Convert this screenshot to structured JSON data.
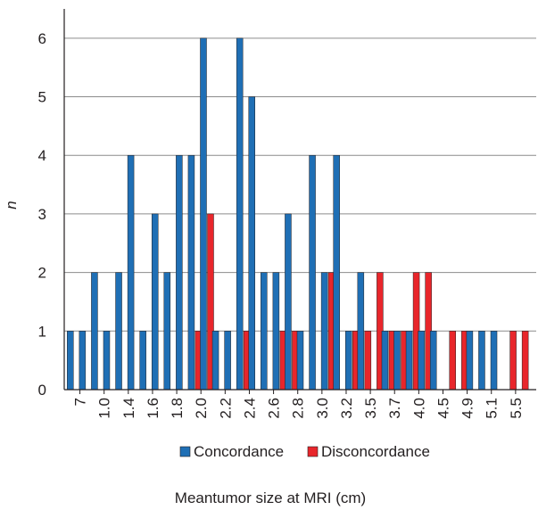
{
  "chart_data": {
    "type": "bar",
    "title": "",
    "ylabel": "n",
    "xlabel": "Meantumor size at MRI (cm)",
    "ylim": [
      0,
      6.5
    ],
    "yticks": [
      0,
      1,
      2,
      3,
      4,
      5,
      6
    ],
    "grid": "horizontal",
    "legend_position": "bottom",
    "x_tick_labels": [
      "7",
      "1.0",
      "1.4",
      "1.6",
      "1.8",
      "2.0",
      "2.2",
      "2.4",
      "2.6",
      "2.8",
      "3.0",
      "3.2",
      "3.5",
      "3.7",
      "4.0",
      "4.5",
      "4.9",
      "5.1",
      "5.5"
    ],
    "series": [
      {
        "name": "Concordance",
        "color": "#1f6fb5",
        "values": [
          1,
          1,
          2,
          1,
          2,
          4,
          1,
          3,
          2,
          4,
          4,
          6,
          1,
          1,
          6,
          5,
          2,
          2,
          3,
          1,
          4,
          2,
          4,
          1,
          2,
          0,
          1,
          1,
          1,
          1,
          1,
          0,
          0,
          1,
          1,
          1,
          0,
          0,
          0
        ]
      },
      {
        "name": "Disconcordance",
        "color": "#e8262b",
        "values": [
          0,
          0,
          0,
          0,
          0,
          0,
          0,
          0,
          0,
          0,
          1,
          3,
          0,
          0,
          1,
          0,
          0,
          1,
          1,
          0,
          0,
          2,
          0,
          1,
          1,
          2,
          1,
          1,
          2,
          2,
          0,
          1,
          1,
          0,
          0,
          0,
          1,
          1,
          0
        ]
      }
    ]
  }
}
